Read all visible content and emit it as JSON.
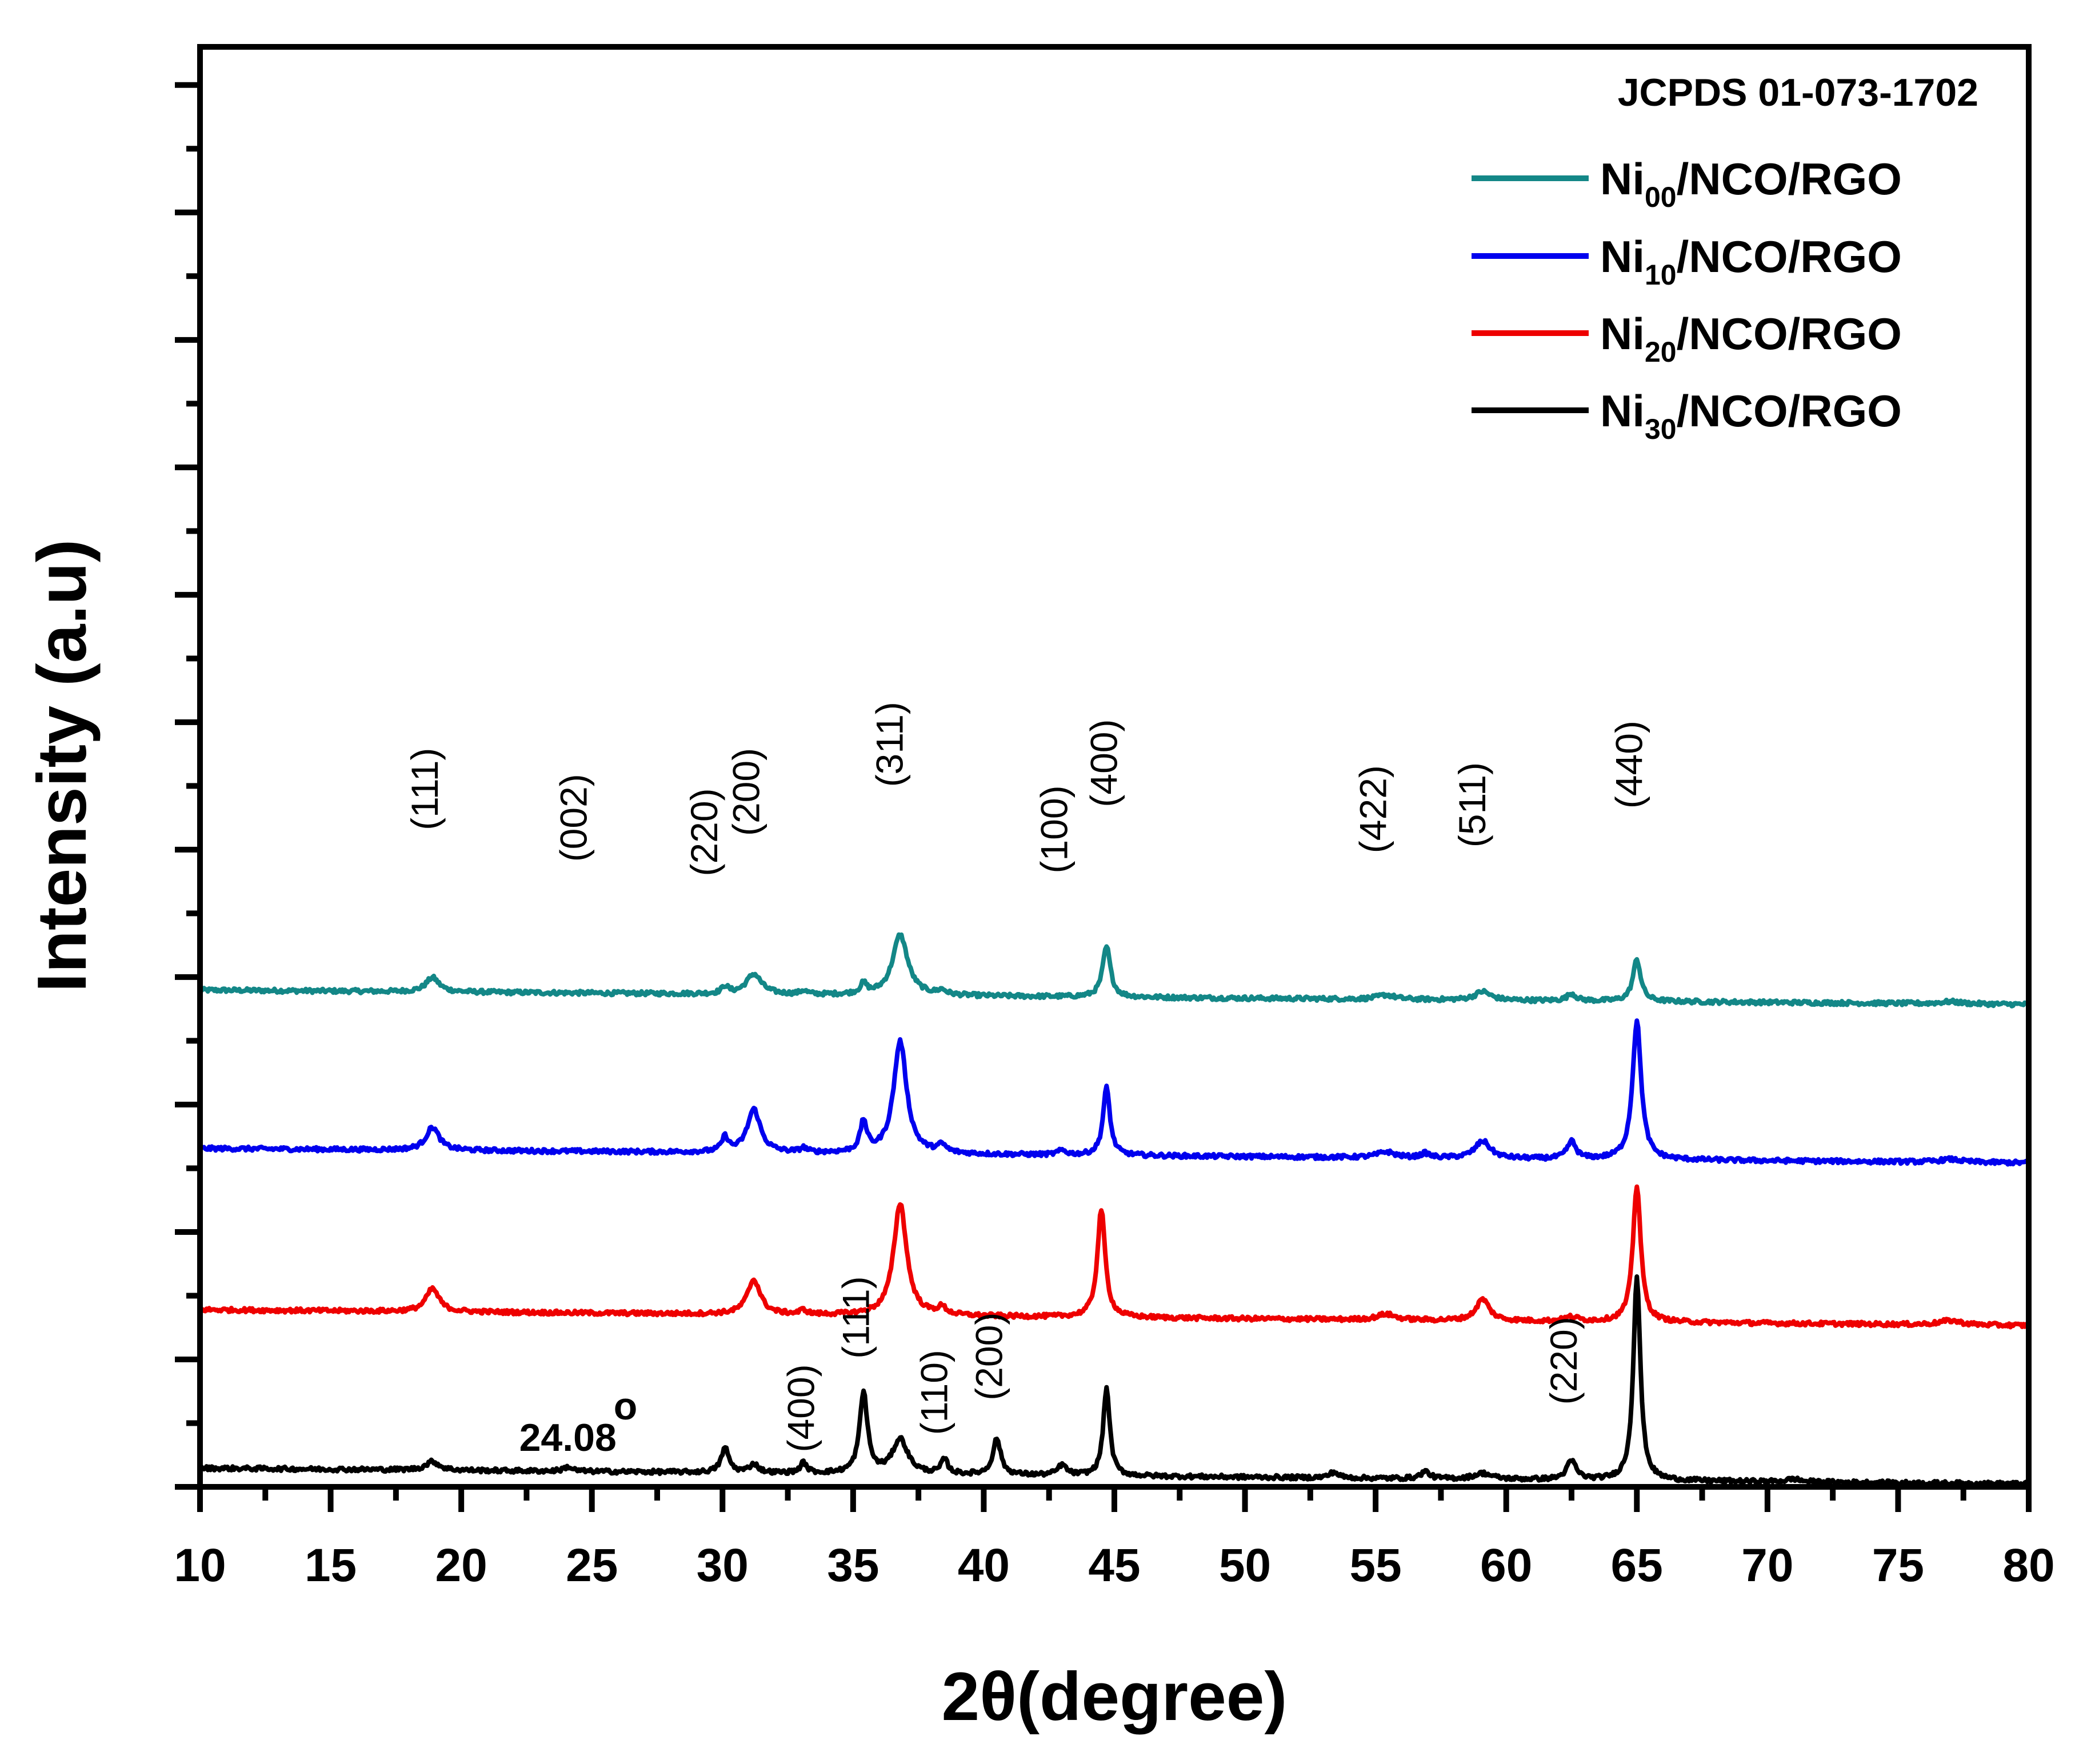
{
  "chart_data": {
    "type": "line",
    "title": "",
    "xlabel": "2θ(degree)",
    "ylabel": "Intensity (a.u)",
    "xlim": [
      10,
      80
    ],
    "xticks": [
      10,
      15,
      20,
      25,
      30,
      35,
      40,
      45,
      50,
      55,
      60,
      65,
      70,
      75,
      80
    ],
    "reference": "JCPDS 01-073-1702",
    "ylim": [
      0,
      100
    ],
    "yticks_major": [
      0,
      8.85,
      17.7,
      26.55,
      35.4,
      44.25,
      53.1,
      61.95,
      70.8,
      79.65,
      88.5,
      97.35
    ],
    "series": [
      {
        "name_main": "Ni",
        "name_sub": "00",
        "name_rest": "/NCO/RGO",
        "color": "#138787",
        "baseline_start": 34.5,
        "baseline_end": 33.5,
        "peaks": [
          [
            18.9,
            1.0,
            0.3
          ],
          [
            30.1,
            0.5,
            0.15
          ],
          [
            31.2,
            1.4,
            0.35
          ],
          [
            33.1,
            0.25,
            0.15
          ],
          [
            35.4,
            0.7,
            0.15
          ],
          [
            36.8,
            4.2,
            0.35
          ],
          [
            38.4,
            0.3,
            0.2
          ],
          [
            44.7,
            3.5,
            0.18
          ],
          [
            55.4,
            0.3,
            0.4
          ],
          [
            59.1,
            0.6,
            0.35
          ],
          [
            62.5,
            0.5,
            0.2
          ],
          [
            65.0,
            2.9,
            0.18
          ],
          [
            77.0,
            0.15,
            0.5
          ]
        ]
      },
      {
        "name_main": "Ni",
        "name_sub": "10",
        "name_rest": "/NCO/RGO",
        "color": "#0000ee",
        "baseline_start": 23.5,
        "baseline_end": 22.5,
        "peaks": [
          [
            18.9,
            1.6,
            0.3
          ],
          [
            30.1,
            1.0,
            0.15
          ],
          [
            31.2,
            3.0,
            0.3
          ],
          [
            33.1,
            0.3,
            0.15
          ],
          [
            35.4,
            2.1,
            0.15
          ],
          [
            36.8,
            7.8,
            0.3
          ],
          [
            38.4,
            0.5,
            0.2
          ],
          [
            43.0,
            0.3,
            0.2
          ],
          [
            44.7,
            4.7,
            0.16
          ],
          [
            55.4,
            0.4,
            0.4
          ],
          [
            56.9,
            0.3,
            0.2
          ],
          [
            59.1,
            1.2,
            0.35
          ],
          [
            62.5,
            1.2,
            0.2
          ],
          [
            65.0,
            9.6,
            0.2
          ],
          [
            77.0,
            0.2,
            0.5
          ]
        ]
      },
      {
        "name_main": "Ni",
        "name_sub": "20",
        "name_rest": "/NCO/RGO",
        "color": "#ee0000",
        "baseline_start": 12.3,
        "baseline_end": 11.2,
        "peaks": [
          [
            18.9,
            1.6,
            0.3
          ],
          [
            31.2,
            2.4,
            0.3
          ],
          [
            33.1,
            0.3,
            0.15
          ],
          [
            36.8,
            7.8,
            0.3
          ],
          [
            38.4,
            0.5,
            0.2
          ],
          [
            44.5,
            7.5,
            0.18
          ],
          [
            55.4,
            0.4,
            0.4
          ],
          [
            59.1,
            1.5,
            0.3
          ],
          [
            62.5,
            0.3,
            0.3
          ],
          [
            65.0,
            9.5,
            0.18
          ],
          [
            77.0,
            0.3,
            0.5
          ]
        ]
      },
      {
        "name_main": "Ni",
        "name_sub": "30",
        "name_rest": "/NCO/RGO",
        "color": "#000000",
        "baseline_start": 1.3,
        "baseline_end": 0.2,
        "peaks": [
          [
            18.9,
            0.6,
            0.3
          ],
          [
            24.08,
            0.3,
            0.2
          ],
          [
            30.1,
            1.7,
            0.18
          ],
          [
            31.2,
            0.6,
            0.2
          ],
          [
            33.1,
            0.7,
            0.15
          ],
          [
            35.4,
            5.6,
            0.18
          ],
          [
            36.8,
            2.4,
            0.35
          ],
          [
            38.5,
            1.0,
            0.15
          ],
          [
            40.5,
            2.5,
            0.18
          ],
          [
            43.0,
            0.7,
            0.2
          ],
          [
            44.7,
            6.1,
            0.15
          ],
          [
            53.4,
            0.4,
            0.2
          ],
          [
            56.9,
            0.5,
            0.2
          ],
          [
            59.1,
            0.4,
            0.4
          ],
          [
            62.5,
            1.3,
            0.22
          ],
          [
            65.0,
            14.2,
            0.16
          ],
          [
            71.0,
            0.2,
            0.3
          ]
        ]
      }
    ],
    "hkl_annotations": [
      {
        "label": "(111)",
        "x": 19.1,
        "y": 45.6
      },
      {
        "label": "(002)",
        "x": 24.8,
        "y": 43.4
      },
      {
        "label": "(220)",
        "x": 29.8,
        "y": 42.4
      },
      {
        "label": "(200)",
        "x": 31.4,
        "y": 45.2
      },
      {
        "label": "(311)",
        "x": 36.9,
        "y": 48.6
      },
      {
        "label": "(100)",
        "x": 43.2,
        "y": 42.6
      },
      {
        "label": "(400)",
        "x": 45.1,
        "y": 47.2
      },
      {
        "label": "(422)",
        "x": 55.4,
        "y": 44.0
      },
      {
        "label": "(511)",
        "x": 59.2,
        "y": 44.4
      },
      {
        "label": "(440)",
        "x": 65.2,
        "y": 47.1
      },
      {
        "label": "(400)",
        "x": 33.5,
        "y": 2.4
      },
      {
        "label": "(111)",
        "x": 35.6,
        "y": 8.9
      },
      {
        "label": "(110)",
        "x": 38.6,
        "y": 3.6
      },
      {
        "label": "(200)",
        "x": 40.7,
        "y": 6.0
      },
      {
        "label": "(220)",
        "x": 62.7,
        "y": 5.7
      }
    ],
    "angle_annotation": {
      "text": "24.08",
      "superscript": "o",
      "x": 24.08,
      "y": 2.5
    }
  }
}
